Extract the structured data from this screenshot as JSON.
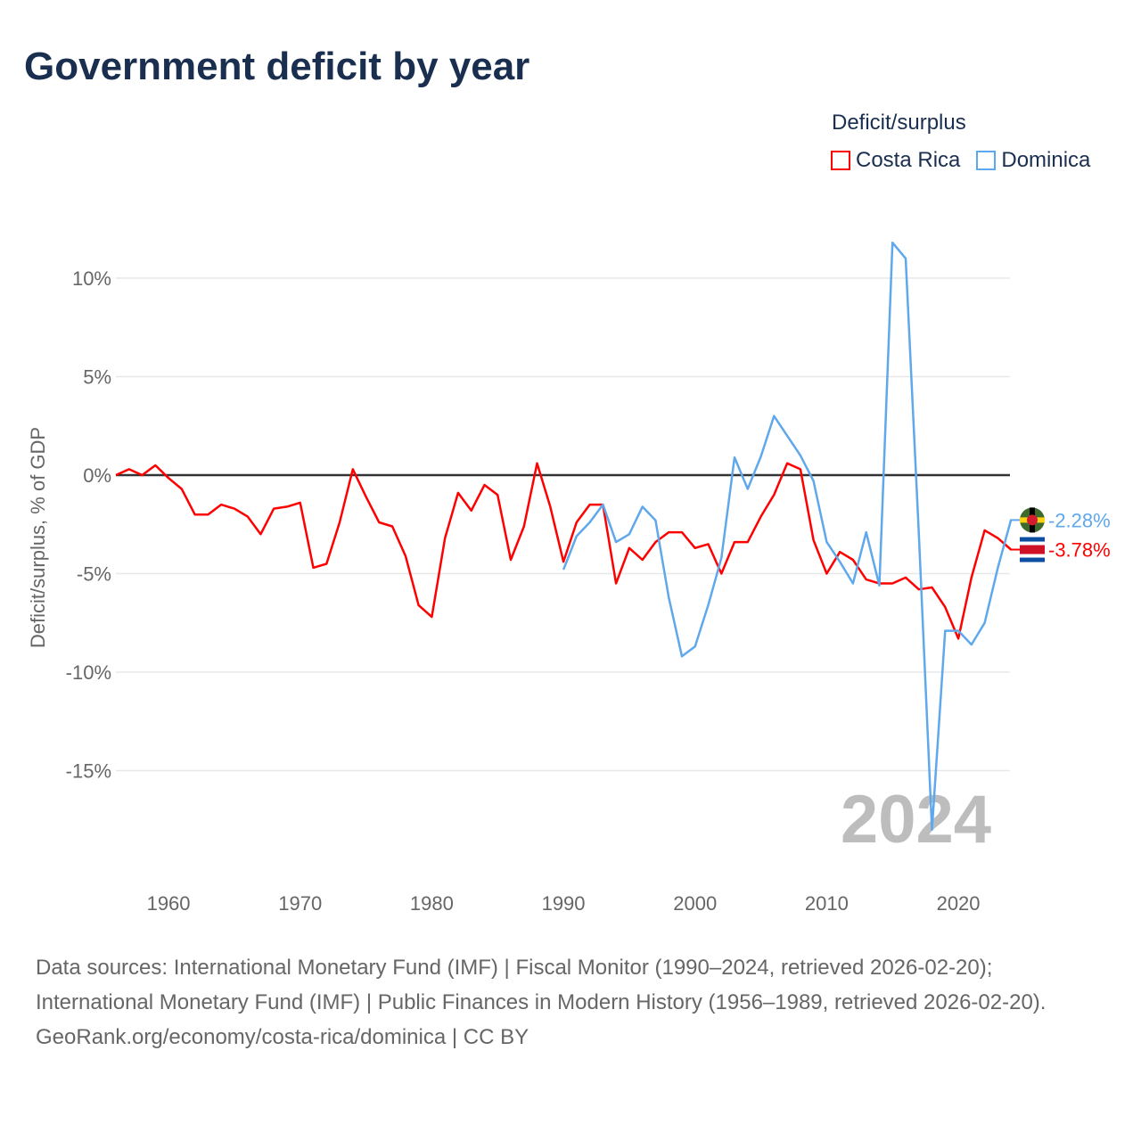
{
  "title": "Government deficit by year",
  "legend": {
    "title": "Deficit/surplus",
    "items": [
      {
        "label": "Costa Rica",
        "color": "#ff0000"
      },
      {
        "label": "Dominica",
        "color": "#5fa8ec"
      }
    ]
  },
  "chart_data": {
    "type": "line",
    "title": "Government deficit by year",
    "xlabel": "",
    "ylabel": "Deficit/surplus, % of GDP",
    "xlim": [
      1956,
      2024
    ],
    "ylim": [
      -20,
      12
    ],
    "x_ticks": [
      1960,
      1970,
      1980,
      1990,
      2000,
      2010,
      2020
    ],
    "x_tick_labels": [
      "1960",
      "1970",
      "1980",
      "1990",
      "2000",
      "2010",
      "2020"
    ],
    "y_ticks": [
      10,
      5,
      0,
      -5,
      -10,
      -15
    ],
    "y_tick_labels": [
      "10%",
      "5%",
      "0%",
      "-5%",
      "-10%",
      "-15%"
    ],
    "grid": true,
    "legend_position": "top-right",
    "year_watermark": "2024",
    "series": [
      {
        "name": "Costa Rica",
        "color": "#ff0000",
        "start_year": 1956,
        "end_label": "-3.78%",
        "values": [
          0,
          0.3,
          0,
          0.5,
          -0.15,
          -0.7,
          -2.0,
          -2.0,
          -1.5,
          -1.7,
          -2.1,
          -3.0,
          -1.7,
          -1.6,
          -1.4,
          -4.7,
          -4.5,
          -2.4,
          0.3,
          -1.1,
          -2.4,
          -2.6,
          -4.1,
          -6.6,
          -7.2,
          -3.2,
          -0.9,
          -1.8,
          -0.5,
          -1.0,
          -4.3,
          -2.6,
          0.6,
          -1.6,
          -4.4,
          -2.4,
          -1.5,
          -1.5,
          -5.5,
          -3.7,
          -4.3,
          -3.4,
          -2.9,
          -2.9,
          -3.7,
          -3.5,
          -5.0,
          -3.4,
          -3.4,
          -2.1,
          -1.0,
          0.6,
          0.3,
          -3.3,
          -5.0,
          -3.9,
          -4.3,
          -5.3,
          -5.5,
          -5.5,
          -5.2,
          -5.8,
          -5.7,
          -6.7,
          -8.3,
          -5.2,
          -2.8,
          -3.2,
          -3.78
        ]
      },
      {
        "name": "Dominica",
        "color": "#5fa8ec",
        "start_year": 1990,
        "end_label": "-2.28%",
        "values": [
          -4.8,
          -3.1,
          -2.4,
          -1.5,
          -3.4,
          -3.0,
          -1.6,
          -2.3,
          -6.2,
          -9.2,
          -8.7,
          -6.6,
          -4.2,
          0.9,
          -0.7,
          0.95,
          3.0,
          2.0,
          1.0,
          -0.3,
          -3.4,
          -4.4,
          -5.5,
          -2.9,
          -5.6,
          11.8,
          11.0,
          -3.0,
          -18.0,
          -7.9,
          -7.9,
          -8.6,
          -7.5,
          -4.7,
          -2.28
        ]
      }
    ]
  },
  "footer": {
    "sources": "Data sources: International Monetary Fund (IMF) | Fiscal Monitor (1990–2024, retrieved 2026-02-20); International Monetary Fund (IMF) | Public Finances in Modern History (1956–1989, retrieved 2026-02-20).",
    "link": "GeoRank.org/economy/costa-rica/dominica",
    "license": " | CC BY"
  }
}
